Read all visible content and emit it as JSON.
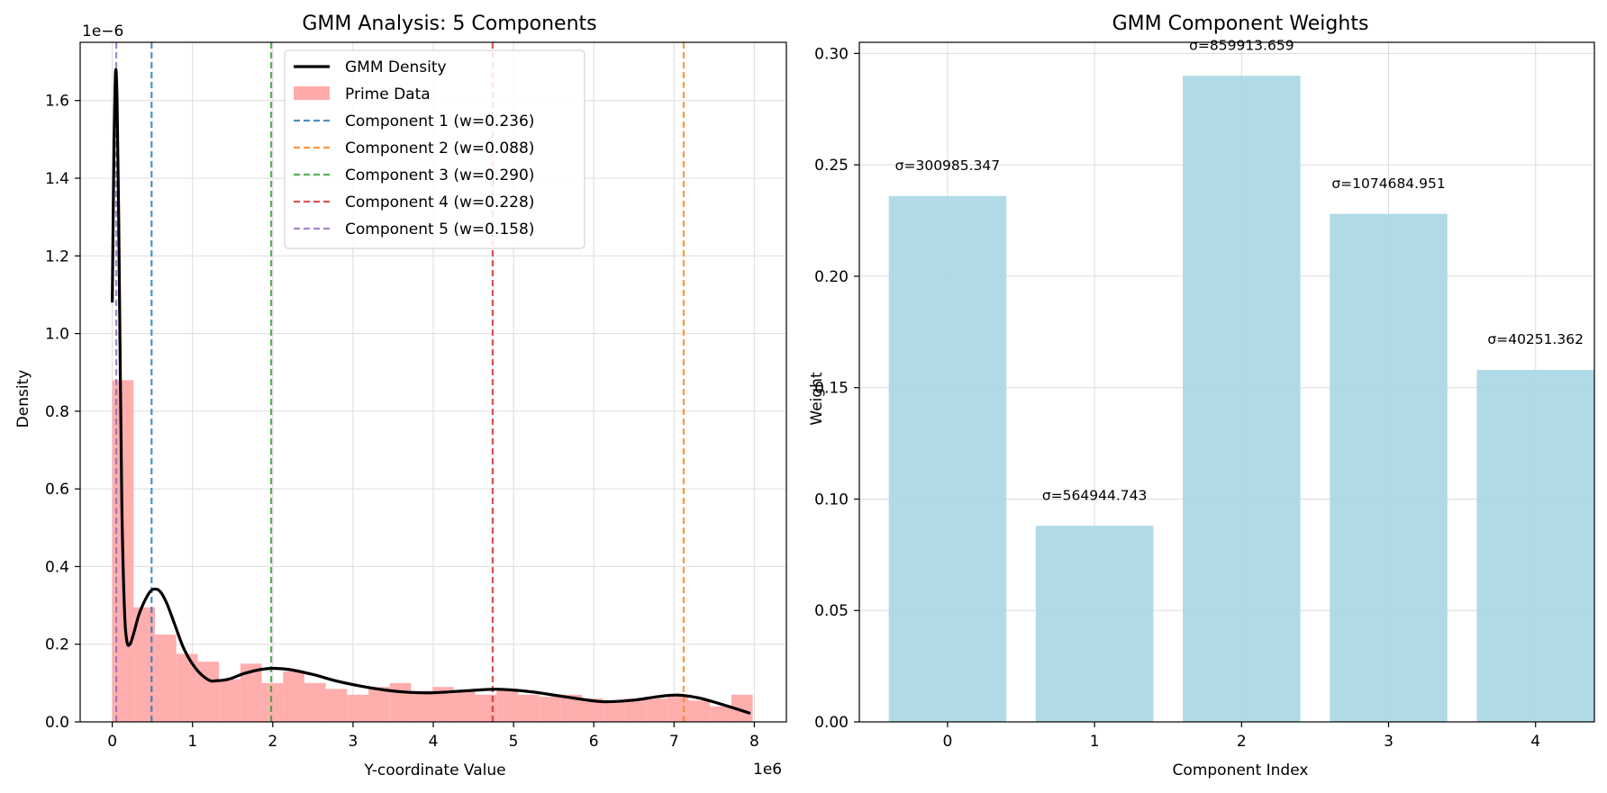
{
  "chart_data": [
    {
      "type": "bar",
      "title": "GMM Analysis: 5 Components",
      "xlabel": "Y-coordinate Value",
      "ylabel": "Density",
      "x_offset_text": "1e6",
      "y_offset_text": "1e−6",
      "xlim": [
        -0.4,
        8.4
      ],
      "ylim": [
        0,
        1.75
      ],
      "xticks": [
        0,
        1,
        2,
        3,
        4,
        5,
        6,
        7,
        8
      ],
      "yticks": [
        0.0,
        0.2,
        0.4,
        0.6,
        0.8,
        1.0,
        1.2,
        1.4,
        1.6
      ],
      "grid": true,
      "legend_position": "upper-center",
      "histogram": {
        "name": "Prime Data",
        "color": "#ffaaaa",
        "bin_edges": [
          0,
          0.266,
          0.532,
          0.798,
          1.064,
          1.33,
          1.596,
          1.862,
          2.128,
          2.394,
          2.66,
          2.926,
          3.192,
          3.458,
          3.724,
          3.99,
          4.256,
          4.522,
          4.788,
          5.054,
          5.32,
          5.586,
          5.852,
          6.118,
          6.384,
          6.65,
          6.916,
          7.182,
          7.448,
          7.714,
          7.98
        ],
        "values": [
          0.88,
          0.295,
          0.225,
          0.175,
          0.155,
          0.11,
          0.15,
          0.1,
          0.13,
          0.1,
          0.085,
          0.07,
          0.09,
          0.1,
          0.08,
          0.09,
          0.08,
          0.07,
          0.08,
          0.07,
          0.065,
          0.07,
          0.06,
          0.055,
          0.06,
          0.06,
          0.065,
          0.055,
          0.04,
          0.07
        ]
      },
      "density_curve": {
        "name": "GMM Density",
        "color": "#000000",
        "x": [
          0.0,
          0.02,
          0.04,
          0.06,
          0.08,
          0.1,
          0.12,
          0.15,
          0.18,
          0.22,
          0.27,
          0.33,
          0.4,
          0.47,
          0.53,
          0.6,
          0.68,
          0.78,
          0.9,
          1.05,
          1.2,
          1.3,
          1.45,
          1.65,
          1.85,
          2.0,
          2.2,
          2.5,
          2.8,
          3.1,
          3.4,
          3.7,
          4.0,
          4.4,
          4.8,
          5.2,
          5.6,
          6.0,
          6.2,
          6.5,
          6.8,
          7.05,
          7.3,
          7.55,
          7.8,
          7.95
        ],
        "y": [
          1.08,
          1.45,
          1.67,
          1.6,
          1.3,
          0.9,
          0.55,
          0.3,
          0.21,
          0.2,
          0.23,
          0.275,
          0.31,
          0.335,
          0.342,
          0.335,
          0.305,
          0.25,
          0.185,
          0.135,
          0.108,
          0.106,
          0.11,
          0.125,
          0.135,
          0.138,
          0.135,
          0.122,
          0.105,
          0.092,
          0.082,
          0.076,
          0.075,
          0.08,
          0.084,
          0.078,
          0.066,
          0.054,
          0.052,
          0.056,
          0.065,
          0.069,
          0.062,
          0.048,
          0.032,
          0.022
        ]
      },
      "component_lines": [
        {
          "label": "Component 1 (w=0.236)",
          "x": 0.49,
          "color": "#1f77b4"
        },
        {
          "label": "Component 2 (w=0.088)",
          "x": 7.12,
          "color": "#ff7f0e"
        },
        {
          "label": "Component 3 (w=0.290)",
          "x": 1.98,
          "color": "#2ca02c"
        },
        {
          "label": "Component 4 (w=0.228)",
          "x": 4.74,
          "color": "#d62728"
        },
        {
          "label": "Component 5 (w=0.158)",
          "x": 0.05,
          "color": "#9467bd"
        }
      ]
    },
    {
      "type": "bar",
      "title": "GMM Component Weights",
      "xlabel": "Component Index",
      "ylabel": "Weight",
      "categories": [
        "0",
        "1",
        "2",
        "3",
        "4"
      ],
      "values": [
        0.236,
        0.088,
        0.29,
        0.228,
        0.158
      ],
      "annotations": [
        "σ=300985.347",
        "σ=564944.743",
        "σ=859913.659",
        "σ=1074684.951",
        "σ=40251.362"
      ],
      "color": "#add8e6",
      "xlim": [
        -0.6,
        4.4
      ],
      "ylim": [
        0,
        0.305
      ],
      "yticks": [
        0.0,
        0.05,
        0.1,
        0.15,
        0.2,
        0.25,
        0.3
      ],
      "ytick_labels": [
        "0.00",
        "0.05",
        "0.10",
        "0.15",
        "0.20",
        "0.25",
        "0.30"
      ],
      "grid": true
    }
  ]
}
